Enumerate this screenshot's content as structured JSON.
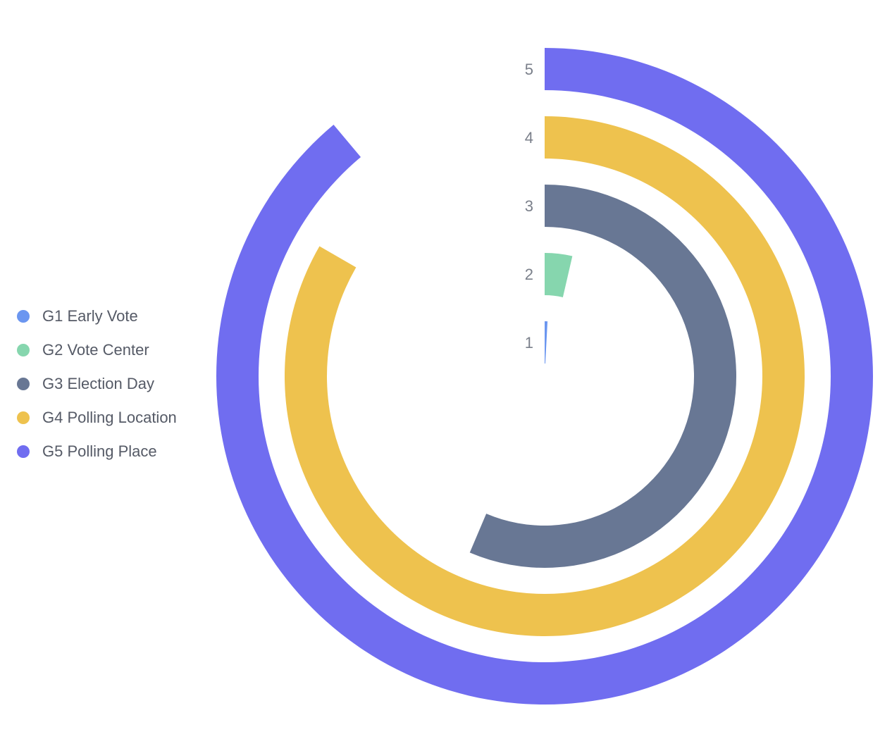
{
  "chart_data": {
    "type": "radial-bar",
    "max_angle_deg": 360,
    "categories": [
      "1",
      "2",
      "3",
      "4",
      "5"
    ],
    "series": [
      {
        "name": "G1 Early Vote",
        "category": "1",
        "value": 3,
        "color": "#6b96f0"
      },
      {
        "name": "G2 Vote Center",
        "category": "2",
        "value": 13,
        "color": "#86d6ae"
      },
      {
        "name": "G3 Election Day",
        "category": "3",
        "value": 203,
        "color": "#687794"
      },
      {
        "name": "G4 Polling Location",
        "category": "4",
        "value": 300,
        "color": "#eec24e"
      },
      {
        "name": "G5 Polling Place",
        "category": "5",
        "value": 320,
        "color": "#706df0"
      }
    ],
    "legend_position": "left",
    "grid": false
  }
}
